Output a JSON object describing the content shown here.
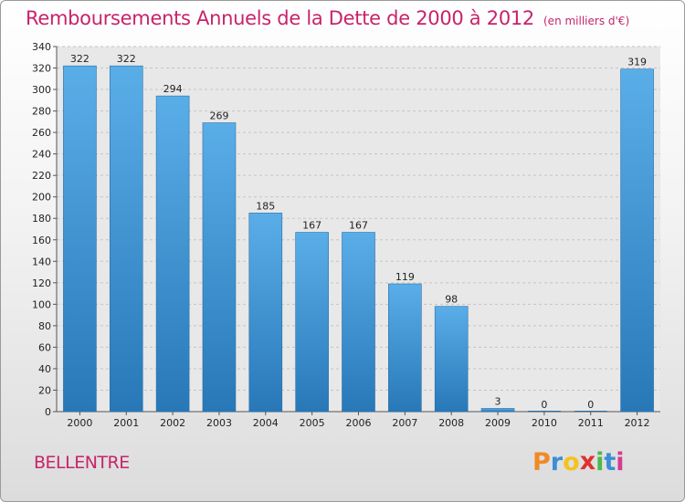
{
  "chart_data": {
    "type": "bar",
    "title": "Remboursements Annuels de la Dette de 2000 à 2012",
    "unit_note": "(en milliers d'€)",
    "categories": [
      "2000",
      "2001",
      "2002",
      "2003",
      "2004",
      "2005",
      "2006",
      "2007",
      "2008",
      "2009",
      "2010",
      "2011",
      "2012"
    ],
    "values": [
      322,
      322,
      294,
      269,
      185,
      167,
      167,
      119,
      98,
      3,
      0,
      0,
      319
    ],
    "yticks": [
      0,
      20,
      40,
      60,
      80,
      100,
      120,
      140,
      160,
      180,
      200,
      220,
      240,
      260,
      280,
      300,
      320,
      340
    ],
    "ylim": [
      0,
      340
    ],
    "xlabel": "",
    "ylabel": "",
    "grid": true,
    "bar_color": "#4fa3e0"
  },
  "footer": {
    "commune": "BELLENTRE",
    "logo_letters": [
      "P",
      "r",
      "o",
      "x",
      "i",
      "t",
      "i"
    ],
    "logo_colors": [
      "#f08a24",
      "#3a8fd6",
      "#f3c31e",
      "#e0312f",
      "#4db84a",
      "#3a8fd6",
      "#d53c8f"
    ]
  }
}
